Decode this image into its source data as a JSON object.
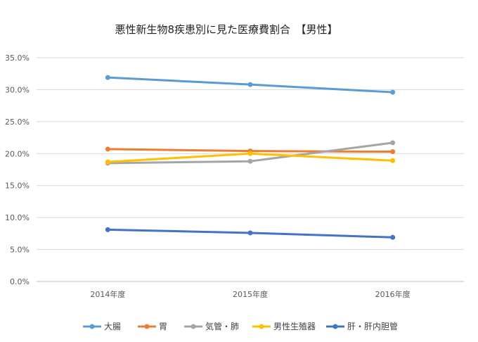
{
  "chart_data": {
    "type": "line",
    "title": "悪性新生物8疾患別に見た医療費割合　【男性】",
    "xlabel": "",
    "ylabel": "",
    "categories": [
      "2014年度",
      "2015年度",
      "2016年度"
    ],
    "ylim": [
      0,
      35
    ],
    "yticks": [
      "0.0%",
      "5.0%",
      "10.0%",
      "15.0%",
      "20.0%",
      "25.0%",
      "30.0%",
      "35.0%"
    ],
    "grid": true,
    "legend_position": "bottom",
    "series": [
      {
        "name": "大腸",
        "values": [
          31.9,
          30.8,
          29.6
        ],
        "color": "#5B9BD5"
      },
      {
        "name": "胃",
        "values": [
          20.7,
          20.4,
          20.3
        ],
        "color": "#ED7D31"
      },
      {
        "name": "気管・肺",
        "values": [
          18.5,
          18.8,
          21.7
        ],
        "color": "#A5A5A5"
      },
      {
        "name": "男性生殖器",
        "values": [
          18.7,
          20.0,
          18.9
        ],
        "color": "#FFC000"
      },
      {
        "name": "肝・肝内胆管",
        "values": [
          8.1,
          7.6,
          6.9
        ],
        "color": "#4472C4"
      }
    ]
  }
}
